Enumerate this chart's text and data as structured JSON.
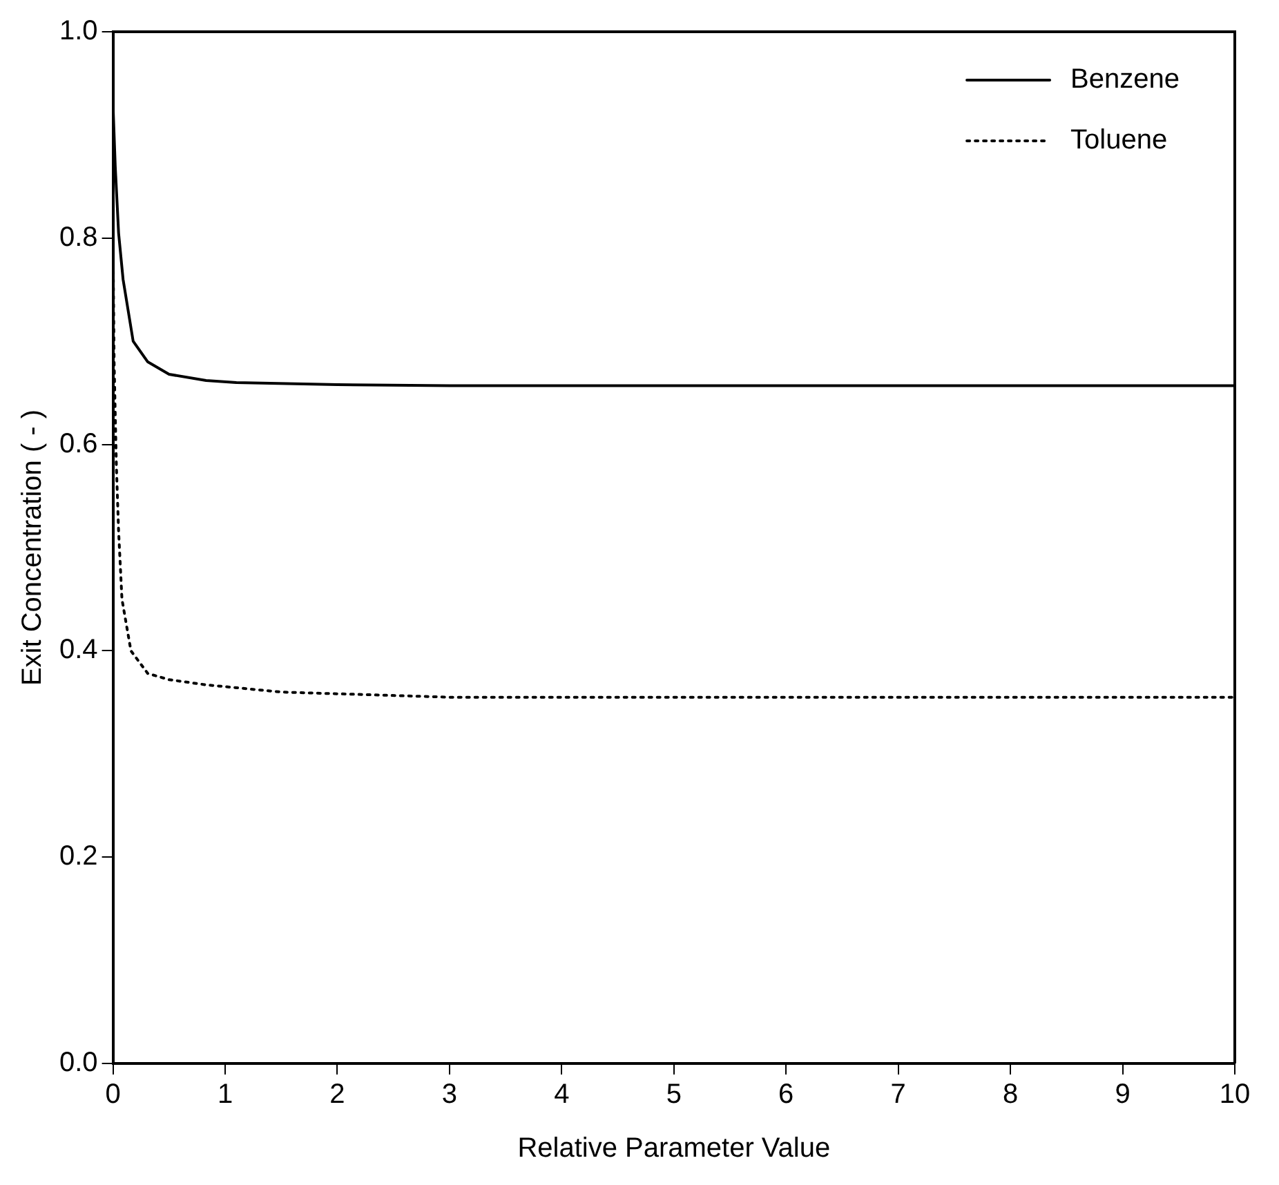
{
  "chart_data": {
    "type": "line",
    "xlabel": "Relative Parameter Value",
    "ylabel": "Exit Concentration ( - )",
    "xlim": [
      0,
      10
    ],
    "xticks": [
      0,
      1,
      2,
      3,
      4,
      5,
      6,
      7,
      8,
      9,
      10
    ],
    "ylim": [
      0,
      1
    ],
    "yticks": [
      {
        "value": 0,
        "label": "0.0"
      },
      0.2,
      0.4,
      0.6,
      0.8,
      {
        "value": 1,
        "label": "1.0"
      }
    ],
    "grid": false,
    "legend": "top right",
    "marker": "none",
    "series": [
      {
        "name": "Benzene",
        "color": "#000000",
        "line_style": "solid",
        "x": [
          0,
          0.02,
          0.05,
          0.09,
          0.18,
          0.31,
          0.5,
          0.83,
          1.1,
          2,
          3,
          4,
          6,
          8,
          10
        ],
        "values": [
          0.93,
          0.87,
          0.805,
          0.76,
          0.7,
          0.68,
          0.668,
          0.662,
          0.66,
          0.658,
          0.657,
          0.657,
          0.657,
          0.657,
          0.657
        ]
      },
      {
        "name": "Toluene",
        "color": "#000000",
        "line_style": "dotted",
        "x": [
          0,
          0.01,
          0.03,
          0.05,
          0.08,
          0.16,
          0.31,
          0.5,
          0.83,
          1.5,
          3,
          5,
          7,
          10
        ],
        "values": [
          0.8,
          0.68,
          0.58,
          0.516,
          0.45,
          0.4,
          0.378,
          0.372,
          0.367,
          0.36,
          0.355,
          0.355,
          0.355,
          0.355
        ]
      }
    ]
  }
}
